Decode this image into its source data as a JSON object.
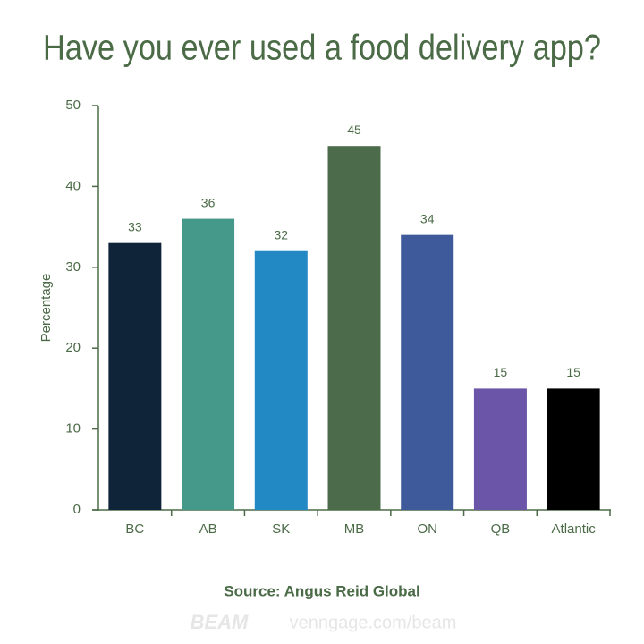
{
  "chart_data": {
    "type": "bar",
    "title": "Have you ever used a food delivery app?",
    "y_label": "Percentage",
    "categories": [
      "BC",
      "AB",
      "SK",
      "MB",
      "ON",
      "QB",
      "Atlantic"
    ],
    "values": [
      33,
      36,
      32,
      45,
      34,
      15,
      15
    ],
    "colors": [
      "#0f2439",
      "#45998a",
      "#2289c4",
      "#4b6b4b",
      "#3f5a9a",
      "#6a55a8",
      "#000000"
    ],
    "ylim": [
      0,
      50
    ],
    "yticks": [
      0,
      10,
      20,
      30,
      40,
      50
    ],
    "grid": false,
    "source": "Source: Angus Reid Global"
  },
  "footer": {
    "logo": "BEAM",
    "url": "venngage.com/beam"
  }
}
